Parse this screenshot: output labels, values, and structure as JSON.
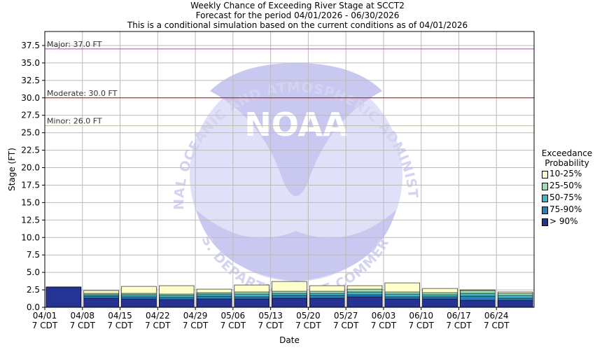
{
  "header": {
    "title": "Weekly Chance of Exceeding River Stage at SCCT2",
    "subtitle": "Forecast for the period 04/01/2026 - 06/30/2026",
    "note": "This is a conditional simulation based on the current conditions as of 04/01/2026"
  },
  "watermark": {
    "text_top": "NATIONAL OCEANIC AND ATMOSPHERIC ADMINISTRATION",
    "text_bottom": "U.S. DEPARTMENT OF COMMERCE",
    "logo_text": "NOAA"
  },
  "legend": {
    "title_line1": "Exceedance",
    "title_line2": "Probability",
    "items": [
      {
        "label": "10-25%",
        "color": "#ffffcc"
      },
      {
        "label": "25-50%",
        "color": "#a1dab4"
      },
      {
        "label": "50-75%",
        "color": "#41b6c4"
      },
      {
        "label": "75-90%",
        "color": "#2c7fb8"
      },
      {
        "label": "> 90%",
        "color": "#253494"
      }
    ]
  },
  "chart_data": {
    "type": "bar",
    "xlabel": "Date",
    "ylabel": "Stage (FT)",
    "ylim": [
      0,
      39.5
    ],
    "yticks": [
      0.0,
      2.5,
      5.0,
      7.5,
      10.0,
      12.5,
      15.0,
      17.5,
      20.0,
      22.5,
      25.0,
      27.5,
      30.0,
      32.5,
      35.0,
      37.5
    ],
    "grid": true,
    "legend_position": "right",
    "categories": [
      "04/01",
      "04/08",
      "04/15",
      "04/22",
      "04/29",
      "05/06",
      "05/13",
      "05/20",
      "05/27",
      "06/03",
      "06/10",
      "06/17",
      "06/24"
    ],
    "category_sublabel": "7 CDT",
    "thresholds": [
      {
        "label": "Major: 37.0 FT",
        "value": 37.0,
        "color": "#cc33cc"
      },
      {
        "label": "Moderate: 30.0 FT",
        "value": 30.0,
        "color": "#cc0000"
      },
      {
        "label": "Minor: 26.0 FT",
        "value": 26.0,
        "color": "#e6cc00"
      }
    ],
    "series": [
      {
        "name": "> 90%",
        "color": "#253494",
        "values": [
          2.9,
          1.3,
          1.2,
          1.1,
          1.2,
          1.2,
          1.3,
          1.3,
          1.5,
          1.2,
          1.2,
          1.0,
          1.0
        ]
      },
      {
        "name": "75-90%",
        "color": "#2c7fb8",
        "values": [
          2.9,
          1.6,
          1.5,
          1.4,
          1.6,
          1.5,
          1.7,
          1.7,
          1.8,
          1.5,
          1.5,
          1.6,
          1.3
        ]
      },
      {
        "name": "50-75%",
        "color": "#41b6c4",
        "values": [
          2.9,
          1.8,
          1.8,
          1.7,
          1.9,
          1.9,
          2.0,
          2.0,
          2.2,
          1.9,
          1.8,
          2.0,
          1.7
        ]
      },
      {
        "name": "25-50%",
        "color": "#a1dab4",
        "values": [
          2.9,
          2.0,
          2.0,
          1.9,
          2.1,
          2.2,
          2.3,
          2.3,
          2.6,
          2.2,
          2.1,
          2.4,
          2.0
        ]
      },
      {
        "name": "10-25%",
        "color": "#ffffcc",
        "values": [
          2.9,
          2.4,
          3.0,
          3.1,
          2.6,
          3.2,
          3.7,
          3.1,
          3.1,
          3.5,
          2.7,
          2.5,
          2.2
        ]
      }
    ]
  }
}
